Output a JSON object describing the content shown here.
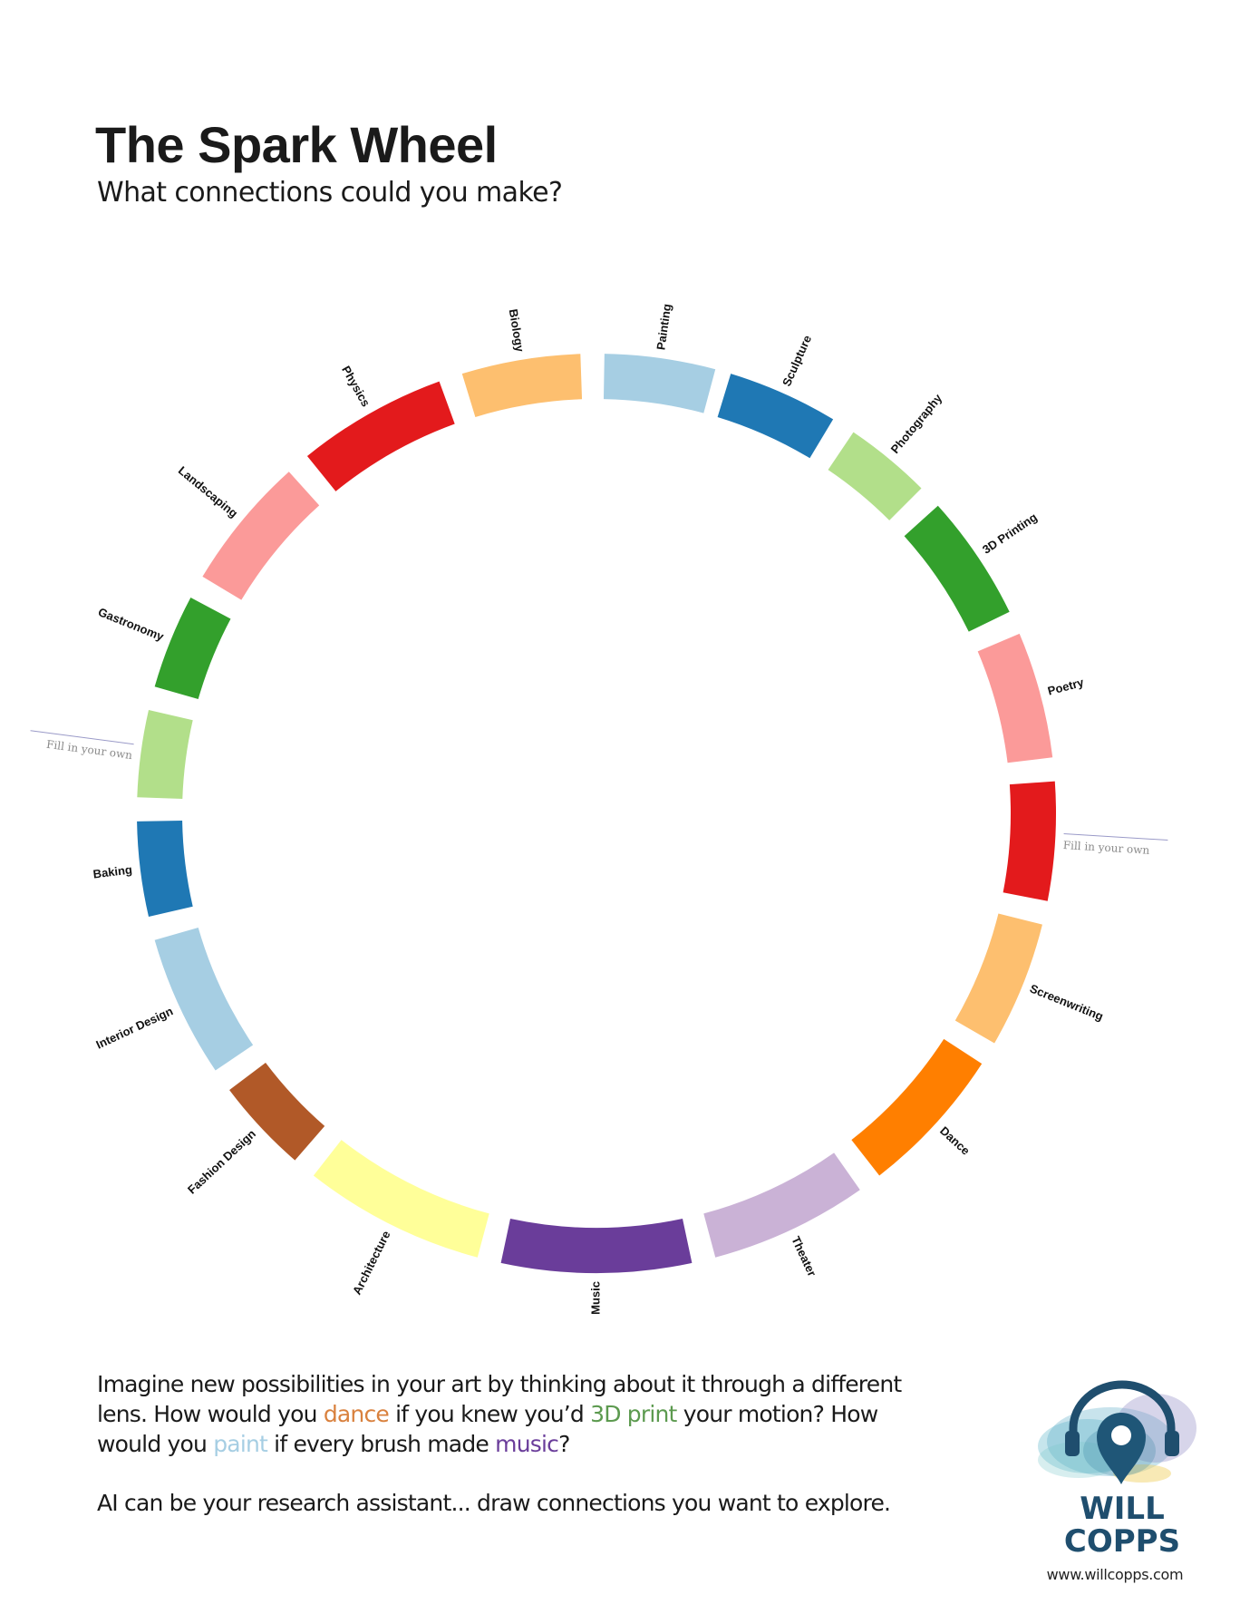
{
  "header": {
    "title": "The Spark Wheel",
    "subtitle": "What connections could you make?"
  },
  "wheel": {
    "segments": [
      {
        "label": "Painting",
        "color": "#a6cee3"
      },
      {
        "label": "Sculpture",
        "color": "#1f78b4"
      },
      {
        "label": "Photography",
        "color": "#b2df8a"
      },
      {
        "label": "3D Printing",
        "color": "#33a02c"
      },
      {
        "label": "Poetry",
        "color": "#fb9a99"
      },
      {
        "label": "Fill in your own",
        "color": "#e31a1c",
        "write_in": true
      },
      {
        "label": "Screenwriting",
        "color": "#fdbf6f"
      },
      {
        "label": "Dance",
        "color": "#ff7f00"
      },
      {
        "label": "Theater",
        "color": "#cab2d6"
      },
      {
        "label": "Music",
        "color": "#6a3d9a"
      },
      {
        "label": "Architecture",
        "color": "#ffff99"
      },
      {
        "label": "Fashion Design",
        "color": "#b15928"
      },
      {
        "label": "Interior Design",
        "color": "#a6cee3"
      },
      {
        "label": "Baking",
        "color": "#1f78b4"
      },
      {
        "label": "Fill in your own",
        "color": "#b2df8a",
        "write_in": true
      },
      {
        "label": "Gastronomy",
        "color": "#33a02c"
      },
      {
        "label": "Landscaping",
        "color": "#fb9a99"
      },
      {
        "label": "Physics",
        "color": "#e31a1c"
      },
      {
        "label": "Biology",
        "color": "#fdbf6f"
      }
    ]
  },
  "body": {
    "p1_a": "Imagine new possibilities in your art by thinking about it through a different lens. How would you ",
    "p1_dance": "dance",
    "p1_b": " if you knew you’d ",
    "p1_print": "3D print",
    "p1_c": " your motion? How would you ",
    "p1_paint": "paint",
    "p1_d": " if every brush made ",
    "p1_music": "music",
    "p1_e": "?",
    "p2": "AI can be your research assistant... draw connections you want to explore.",
    "highlight_colors": {
      "dance": "#d9813e",
      "print": "#5c9a4f",
      "paint": "#a6cee3",
      "music": "#6a3d9a"
    }
  },
  "logo": {
    "line1": "WILL",
    "line2": "COPPS",
    "url": "www.willcopps.com",
    "icon": "headphones-map-pin-icon",
    "color": "#1f4e6e"
  }
}
